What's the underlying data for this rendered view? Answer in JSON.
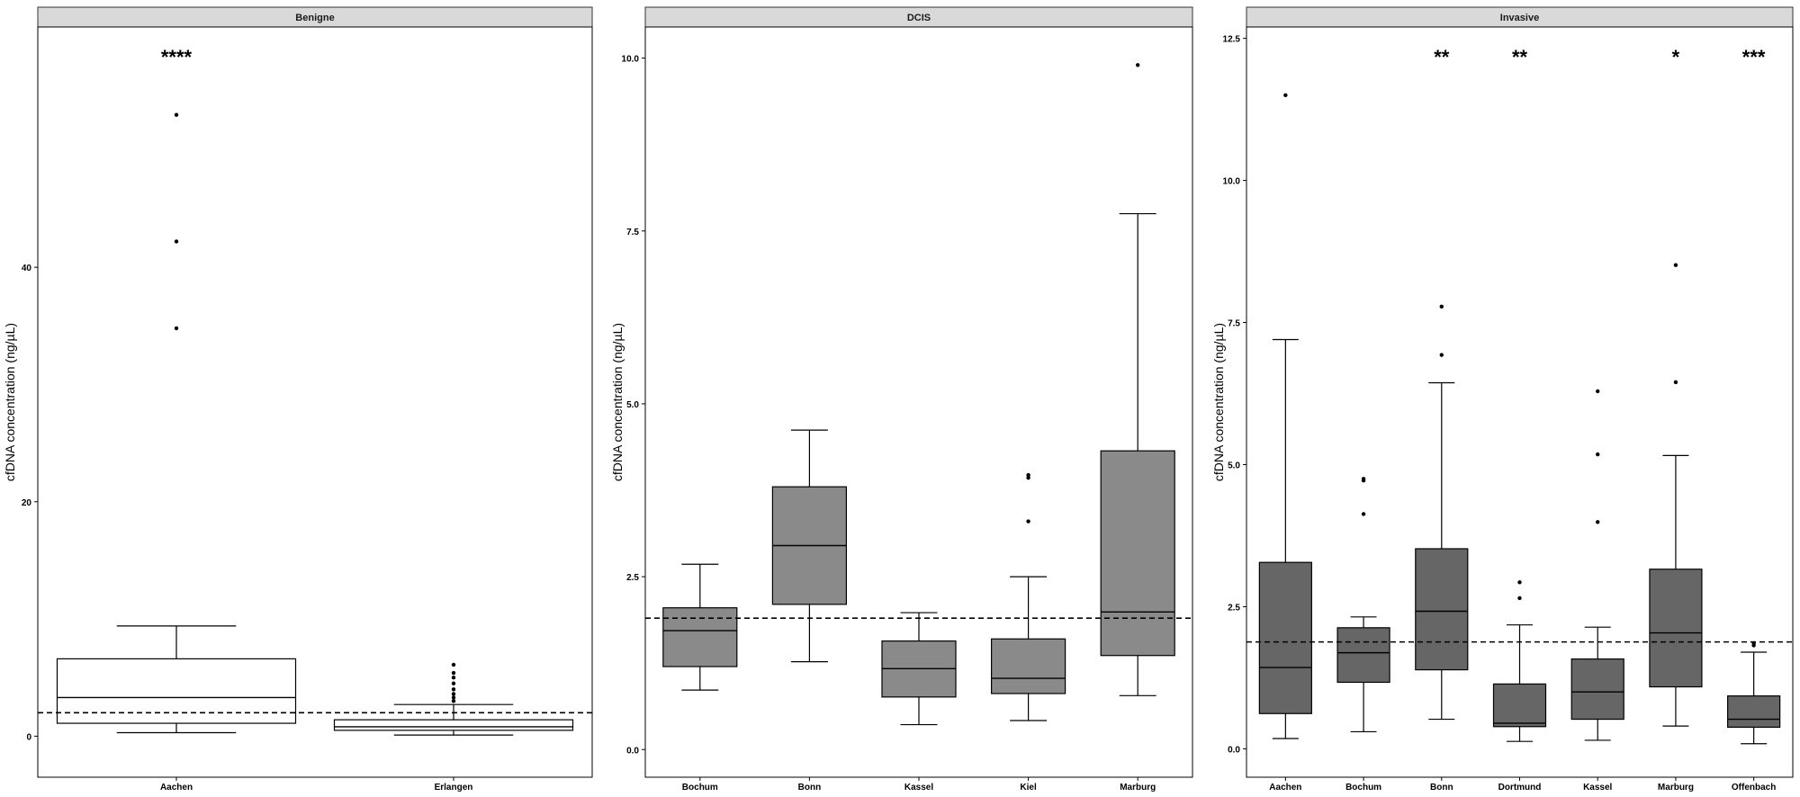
{
  "chart_data": [
    {
      "type": "box",
      "facet": "Benigne",
      "ylabel": "cfDNA concentration (ng/µL)",
      "ylim": [
        -3.5,
        60.5
      ],
      "yticks": [
        0,
        20,
        40
      ],
      "reference_line": 2.0,
      "fill": "#ffffff",
      "categories": [
        "Aachen",
        "Erlangen"
      ],
      "boxes": [
        {
          "category": "Aachen",
          "whisker_low": 0.3,
          "q1": 1.1,
          "median": 3.3,
          "q3": 6.6,
          "whisker_high": 9.4,
          "outliers": [
            34.8,
            42.2,
            53.0
          ],
          "significance": "****"
        },
        {
          "category": "Erlangen",
          "whisker_low": 0.1,
          "q1": 0.5,
          "median": 0.8,
          "q3": 1.4,
          "whisker_high": 2.7,
          "outliers": [
            3.0,
            3.3,
            3.6,
            4.0,
            4.5,
            5.0,
            5.4,
            6.1
          ],
          "significance": ""
        }
      ]
    },
    {
      "type": "box",
      "facet": "DCIS",
      "ylabel": "cfDNA concentration (ng/µL)",
      "ylim": [
        -0.4,
        10.45
      ],
      "yticks": [
        0.0,
        2.5,
        5.0,
        7.5,
        10.0
      ],
      "reference_line": 1.9,
      "fill": "#8a8a8a",
      "categories": [
        "Bochum",
        "Bonn",
        "Kassel",
        "Kiel",
        "Marburg"
      ],
      "boxes": [
        {
          "category": "Bochum",
          "whisker_low": 0.86,
          "q1": 1.2,
          "median": 1.72,
          "q3": 2.05,
          "whisker_high": 2.68,
          "outliers": []
        },
        {
          "category": "Bonn",
          "whisker_low": 1.27,
          "q1": 2.1,
          "median": 2.95,
          "q3": 3.8,
          "whisker_high": 4.62,
          "outliers": []
        },
        {
          "category": "Kassel",
          "whisker_low": 0.36,
          "q1": 0.76,
          "median": 1.17,
          "q3": 1.57,
          "whisker_high": 1.98,
          "outliers": []
        },
        {
          "category": "Kiel",
          "whisker_low": 0.42,
          "q1": 0.81,
          "median": 1.03,
          "q3": 1.6,
          "whisker_high": 2.5,
          "outliers": [
            3.3,
            3.93,
            3.97
          ]
        },
        {
          "category": "Marburg",
          "whisker_low": 0.78,
          "q1": 1.36,
          "median": 1.99,
          "q3": 4.32,
          "whisker_high": 7.75,
          "outliers": [
            9.9
          ]
        }
      ]
    },
    {
      "type": "box",
      "facet": "Invasive",
      "ylabel": "cfDNA concentration (ng/µL)",
      "ylim": [
        -0.5,
        12.7
      ],
      "yticks": [
        0.0,
        2.5,
        5.0,
        7.5,
        10.0,
        12.5
      ],
      "reference_line": 1.88,
      "fill": "#666666",
      "categories": [
        "Aachen",
        "Bochum",
        "Bonn",
        "Dortmund",
        "Kassel",
        "Marburg",
        "Offenbach"
      ],
      "boxes": [
        {
          "category": "Aachen",
          "whisker_low": 0.18,
          "q1": 0.62,
          "median": 1.43,
          "q3": 3.28,
          "whisker_high": 7.2,
          "outliers": [
            11.5
          ],
          "significance": ""
        },
        {
          "category": "Bochum",
          "whisker_low": 0.3,
          "q1": 1.17,
          "median": 1.69,
          "q3": 2.13,
          "whisker_high": 2.32,
          "outliers": [
            4.13,
            4.72,
            4.75
          ],
          "significance": ""
        },
        {
          "category": "Bonn",
          "whisker_low": 0.52,
          "q1": 1.39,
          "median": 2.42,
          "q3": 3.52,
          "whisker_high": 6.44,
          "outliers": [
            6.93,
            7.78
          ],
          "significance": "**"
        },
        {
          "category": "Dortmund",
          "whisker_low": 0.13,
          "q1": 0.39,
          "median": 0.45,
          "q3": 1.14,
          "whisker_high": 2.18,
          "outliers": [
            2.65,
            2.93
          ],
          "significance": "**"
        },
        {
          "category": "Kassel",
          "whisker_low": 0.15,
          "q1": 0.52,
          "median": 1.0,
          "q3": 1.58,
          "whisker_high": 2.14,
          "outliers": [
            3.99,
            5.18,
            6.29
          ],
          "significance": ""
        },
        {
          "category": "Marburg",
          "whisker_low": 0.4,
          "q1": 1.09,
          "median": 2.04,
          "q3": 3.16,
          "whisker_high": 5.16,
          "outliers": [
            6.45,
            8.51
          ],
          "significance": "*"
        },
        {
          "category": "Offenbach",
          "whisker_low": 0.09,
          "q1": 0.38,
          "median": 0.52,
          "q3": 0.93,
          "whisker_high": 1.7,
          "outliers": [
            1.82,
            1.86
          ],
          "significance": "***"
        }
      ]
    }
  ]
}
